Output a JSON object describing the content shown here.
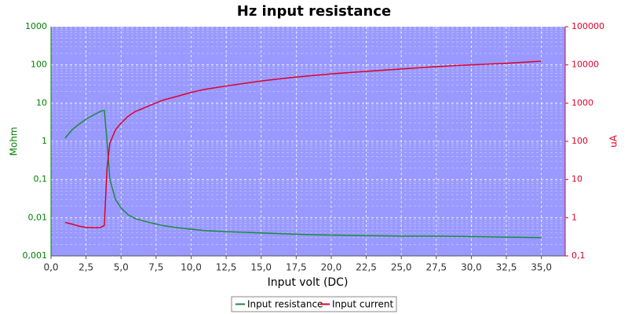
{
  "chart_data": {
    "type": "line",
    "title": "Hz input resistance",
    "xlabel": "Input volt (DC)",
    "ylabel": "Mohm",
    "y2label": "uA",
    "x": [
      1,
      1.5,
      2,
      2.5,
      3,
      3.5,
      3.8,
      4,
      4.2,
      4.6,
      5,
      5.5,
      6,
      7,
      8,
      9,
      10,
      11,
      12.5,
      15,
      17.5,
      20,
      22.5,
      25,
      27.5,
      30,
      32.5,
      35
    ],
    "series": [
      {
        "name": "Input resistance",
        "color": "#1c8a3c",
        "axis": "y",
        "values": [
          1.2,
          2,
          2.8,
          3.8,
          4.8,
          6,
          6.5,
          1,
          0.1,
          0.03,
          0.018,
          0.012,
          0.0095,
          0.0075,
          0.0062,
          0.0055,
          0.005,
          0.0046,
          0.0043,
          0.004,
          0.0037,
          0.0035,
          0.0034,
          0.0033,
          0.0033,
          0.0032,
          0.0031,
          0.003
        ]
      },
      {
        "name": "Input current",
        "color": "#e0002a",
        "axis": "y2",
        "values": [
          0.75,
          0.68,
          0.6,
          0.56,
          0.55,
          0.55,
          0.62,
          20,
          90,
          200,
          300,
          450,
          600,
          850,
          1200,
          1500,
          1900,
          2300,
          2800,
          3800,
          4800,
          5800,
          6800,
          7800,
          9000,
          10000,
          11000,
          12500
        ]
      }
    ],
    "xlim": [
      0,
      36.7
    ],
    "xticks": [
      {
        "value": 0,
        "label": "0,0"
      },
      {
        "value": 2.5,
        "label": "2,5"
      },
      {
        "value": 5,
        "label": "5,0"
      },
      {
        "value": 7.5,
        "label": "7,5"
      },
      {
        "value": 10,
        "label": "10,0"
      },
      {
        "value": 12.5,
        "label": "12,5"
      },
      {
        "value": 15,
        "label": "15,0"
      },
      {
        "value": 17.5,
        "label": "17,5"
      },
      {
        "value": 20,
        "label": "20,0"
      },
      {
        "value": 22.5,
        "label": "22,5"
      },
      {
        "value": 25,
        "label": "25,0"
      },
      {
        "value": 27.5,
        "label": "27,5"
      },
      {
        "value": 30,
        "label": "30,0"
      },
      {
        "value": 32.5,
        "label": "32,5"
      },
      {
        "value": 35,
        "label": "35,0"
      }
    ],
    "ylim": [
      0.001,
      1000
    ],
    "ylog": true,
    "yticks": [
      {
        "value": 0.001,
        "label": "0,001"
      },
      {
        "value": 0.01,
        "label": "0,01"
      },
      {
        "value": 0.1,
        "label": "0,1"
      },
      1,
      10,
      100,
      1000
    ],
    "y2lim": [
      0.1,
      100000
    ],
    "y2log": true,
    "y2ticks": [
      {
        "value": 0.1,
        "label": "0,1"
      },
      1,
      10,
      100,
      1000,
      10000,
      100000
    ],
    "grid": true,
    "legend": "bottom"
  }
}
